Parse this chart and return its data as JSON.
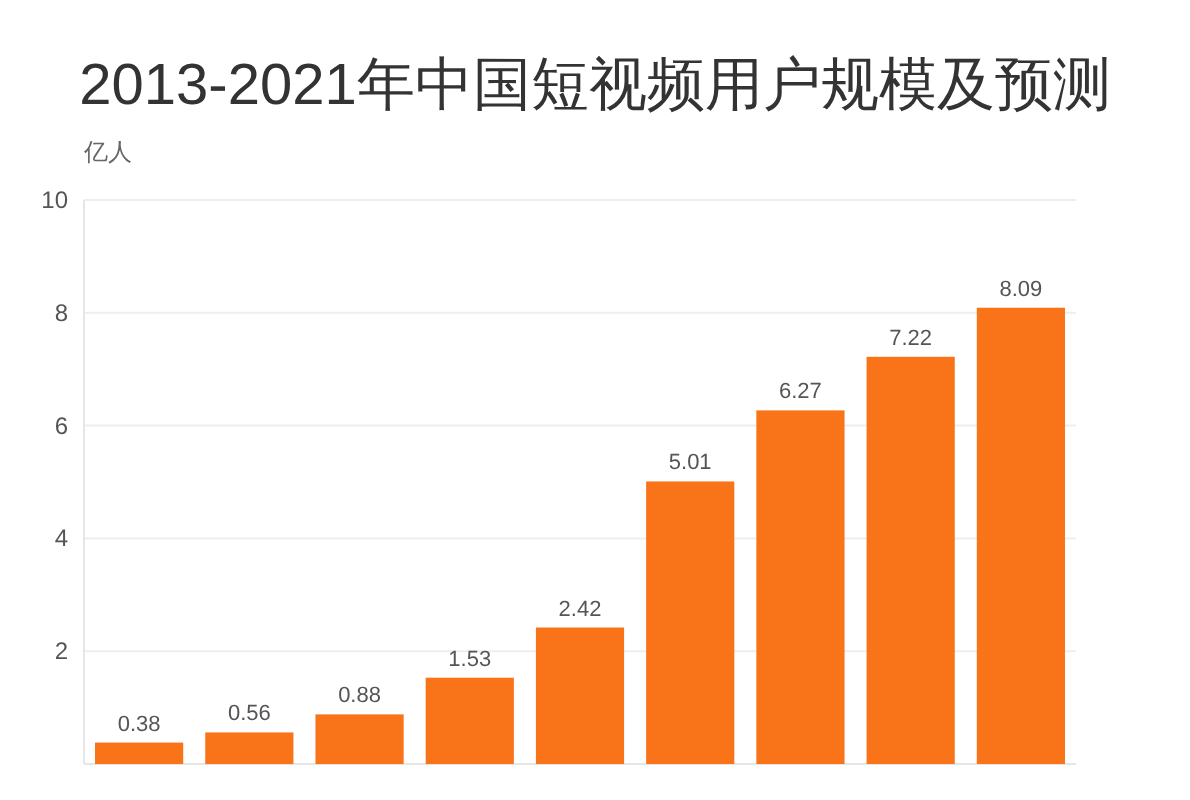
{
  "chart_data": {
    "type": "bar",
    "title": "2013-2021年中国短视频用户规模及预测",
    "ylabel": "亿人",
    "categories": [
      null,
      null,
      null,
      null,
      null,
      null,
      null,
      null,
      null
    ],
    "values": [
      0.38,
      0.56,
      0.88,
      1.53,
      2.42,
      5.01,
      6.27,
      7.22,
      8.09
    ],
    "color": "#f97319",
    "ylim": [
      0,
      10
    ],
    "yticks": [
      2,
      4,
      6,
      8,
      10
    ],
    "grid": "y",
    "data_labels": true
  }
}
